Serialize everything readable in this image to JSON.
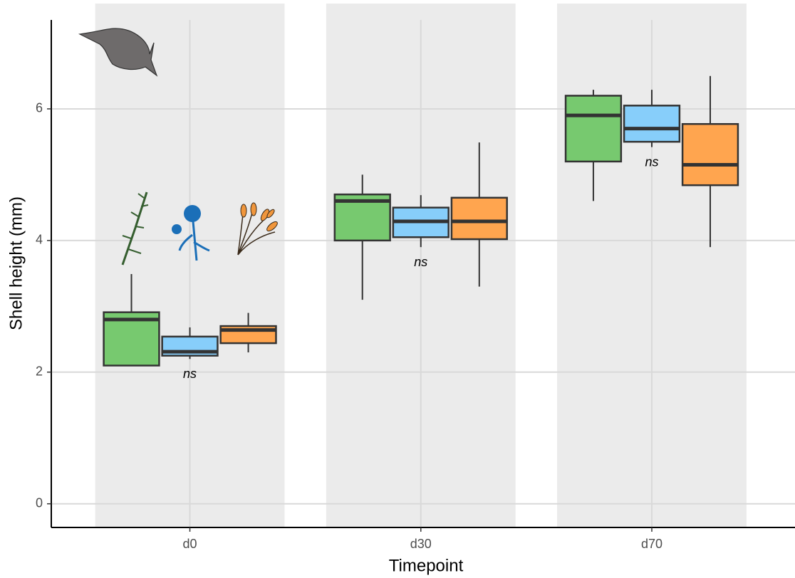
{
  "chart_data": {
    "type": "box",
    "x_label": "Timepoint",
    "y_label": "Shell height (mm)",
    "categories": [
      "d0",
      "d30",
      "d70"
    ],
    "ylim": [
      -0.36,
      7.6
    ],
    "yticks": [
      0,
      2,
      4,
      6
    ],
    "grid": true,
    "series": [
      {
        "color": "#77c96f",
        "values": [
          {
            "low": 2.1,
            "q1": 2.1,
            "median": 2.8,
            "q3": 2.91,
            "high": 3.49
          },
          {
            "low": 3.1,
            "q1": 4.0,
            "median": 4.6,
            "q3": 4.7,
            "high": 5.0
          },
          {
            "low": 4.6,
            "q1": 5.2,
            "median": 5.9,
            "q3": 6.2,
            "high": 6.29
          }
        ]
      },
      {
        "color": "#87cefa",
        "values": [
          {
            "low": 2.2,
            "q1": 2.25,
            "median": 2.31,
            "q3": 2.54,
            "high": 2.68
          },
          {
            "low": 3.9,
            "q1": 4.05,
            "median": 4.29,
            "q3": 4.5,
            "high": 4.69
          },
          {
            "low": 5.42,
            "q1": 5.5,
            "median": 5.7,
            "q3": 6.05,
            "high": 6.29
          }
        ]
      },
      {
        "color": "#ffa54f",
        "values": [
          {
            "low": 2.3,
            "q1": 2.44,
            "median": 2.64,
            "q3": 2.7,
            "high": 2.9
          },
          {
            "low": 3.3,
            "q1": 4.02,
            "median": 4.29,
            "q3": 4.65,
            "high": 5.49
          },
          {
            "low": 3.9,
            "q1": 4.84,
            "median": 5.15,
            "q3": 5.77,
            "high": 6.5
          }
        ]
      }
    ],
    "annotations": [
      "ns",
      "ns",
      "ns"
    ]
  }
}
